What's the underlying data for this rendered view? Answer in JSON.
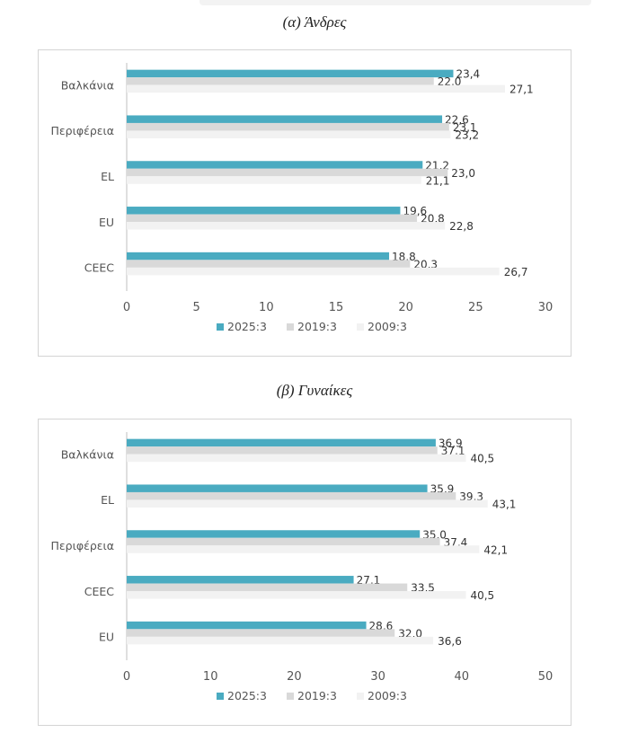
{
  "chart_data": [
    {
      "type": "bar",
      "orientation": "horizontal",
      "title": "(α) Άνδρες",
      "categories": [
        "Βαλκάνια",
        "Περιφέρεια",
        "EL",
        "EU",
        "CEEC"
      ],
      "series": [
        {
          "name": "2025:3",
          "color": "#4aabc1",
          "values": [
            23.4,
            22.6,
            21.2,
            19.6,
            18.8
          ],
          "labels": [
            "23,4",
            "22,6",
            "21,2",
            "19,6",
            "18,8"
          ]
        },
        {
          "name": "2019:3",
          "color": "#d9d9d9",
          "values": [
            22.0,
            23.1,
            23.0,
            20.8,
            20.3
          ],
          "labels": [
            "22,0",
            "23,1",
            "23,0",
            "20,8",
            "20,3"
          ]
        },
        {
          "name": "2009:3",
          "color": "#f2f2f2",
          "values": [
            27.1,
            23.2,
            21.1,
            22.8,
            26.7
          ],
          "labels": [
            "27,1",
            "23,2",
            "21,1",
            "22,8",
            "26,7"
          ]
        }
      ],
      "xlim": [
        0,
        30
      ],
      "xticks": [
        "0",
        "5",
        "10",
        "15",
        "20",
        "25",
        "30"
      ],
      "xlabel": "",
      "ylabel": "",
      "legend_position": "bottom"
    },
    {
      "type": "bar",
      "orientation": "horizontal",
      "title": "(β) Γυναίκες",
      "categories": [
        "Βαλκάνια",
        "EL",
        "Περιφέρεια",
        "CEEC",
        "EU"
      ],
      "series": [
        {
          "name": "2025:3",
          "color": "#4aabc1",
          "values": [
            36.9,
            35.9,
            35.0,
            27.1,
            28.6
          ],
          "labels": [
            "36,9",
            "35,9",
            "35,0",
            "27,1",
            "28,6"
          ]
        },
        {
          "name": "2019:3",
          "color": "#d9d9d9",
          "values": [
            37.1,
            39.3,
            37.4,
            33.5,
            32.0
          ],
          "labels": [
            "37,1",
            "39,3",
            "37,4",
            "33,5",
            "32,0"
          ]
        },
        {
          "name": "2009:3",
          "color": "#f2f2f2",
          "values": [
            40.5,
            43.1,
            42.1,
            40.5,
            36.6
          ],
          "labels": [
            "40,5",
            "43,1",
            "42,1",
            "40,5",
            "36,6"
          ]
        }
      ],
      "xlim": [
        0,
        50
      ],
      "xticks": [
        "0",
        "10",
        "20",
        "30",
        "40",
        "50"
      ],
      "xlabel": "",
      "ylabel": "",
      "legend_position": "bottom"
    }
  ]
}
